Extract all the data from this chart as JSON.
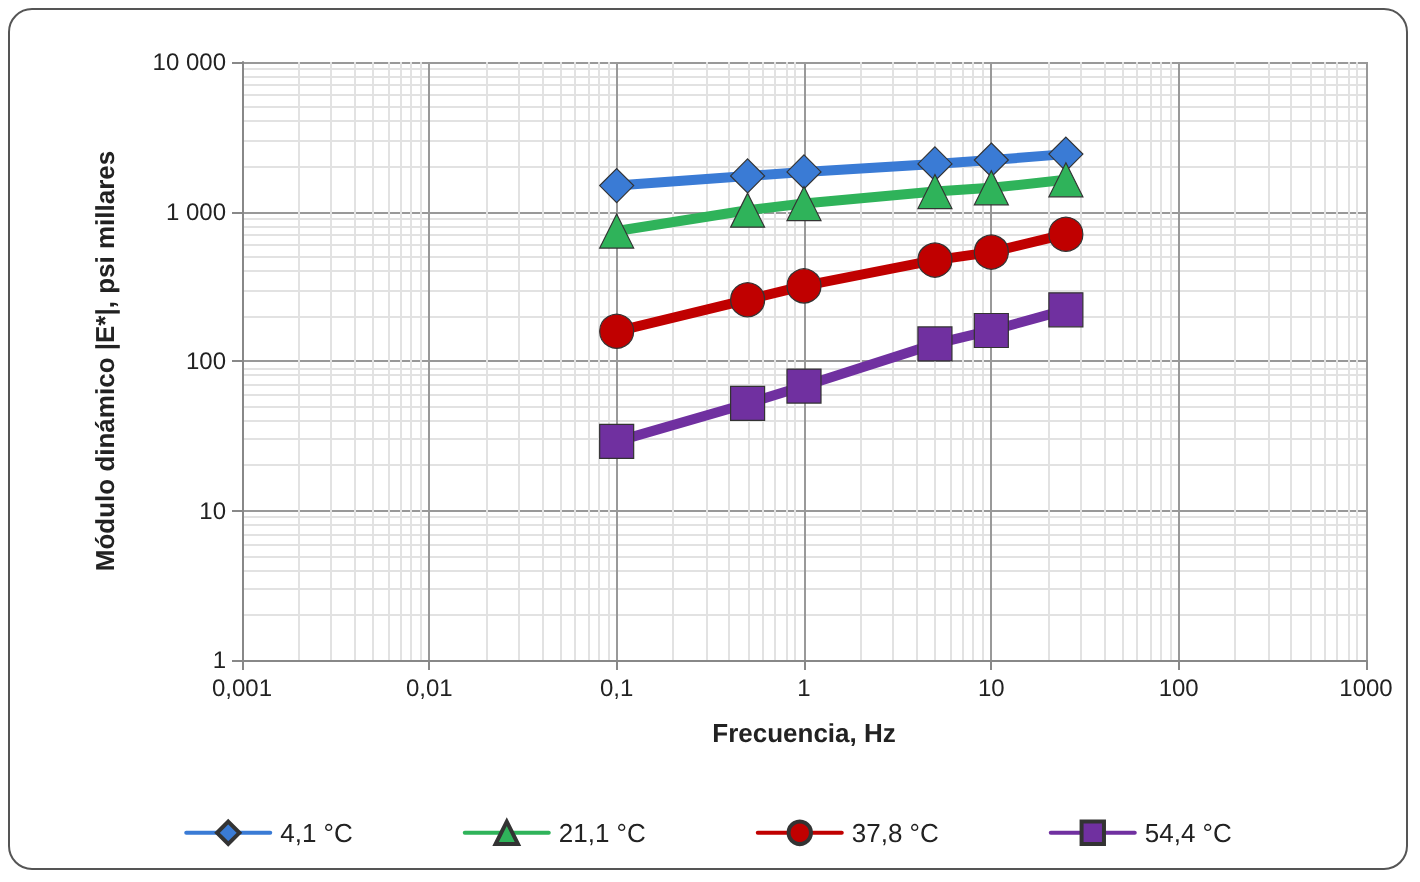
{
  "chart_data": {
    "type": "line",
    "xlabel": "Frecuencia, Hz",
    "ylabel": "Módulo dinámico |E*|, psi millares",
    "x": [
      0.1,
      0.5,
      1,
      5,
      10,
      25
    ],
    "series": [
      {
        "name": "4,1 °C",
        "color": "#3a7bd5",
        "marker": "diamond",
        "values": [
          1490,
          1730,
          1840,
          2080,
          2210,
          2420
        ]
      },
      {
        "name": "21,1 °C",
        "color": "#2fb35a",
        "marker": "triangle",
        "values": [
          740,
          1020,
          1130,
          1360,
          1440,
          1630
        ]
      },
      {
        "name": "37,8 °C",
        "color": "#c00000",
        "marker": "circle",
        "values": [
          158,
          257,
          318,
          473,
          535,
          705
        ]
      },
      {
        "name": "54,4 °C",
        "color": "#7030a0",
        "marker": "square",
        "values": [
          29,
          52,
          68,
          130,
          160,
          220
        ]
      }
    ],
    "log": "xy",
    "xlim": [
      0.001,
      1000
    ],
    "ylim": [
      1,
      10000
    ],
    "xticks": [
      {
        "value": 0.001,
        "label": "0,001"
      },
      {
        "value": 0.01,
        "label": "0,01"
      },
      {
        "value": 0.1,
        "label": "0,1"
      },
      1,
      10,
      100,
      1000
    ],
    "yticks": [
      1,
      10,
      100,
      {
        "value": 1000,
        "label": "1 000"
      },
      {
        "value": 10000,
        "label": "10 000"
      }
    ],
    "grid": true,
    "legend": "bottom",
    "line_style": "solid"
  }
}
